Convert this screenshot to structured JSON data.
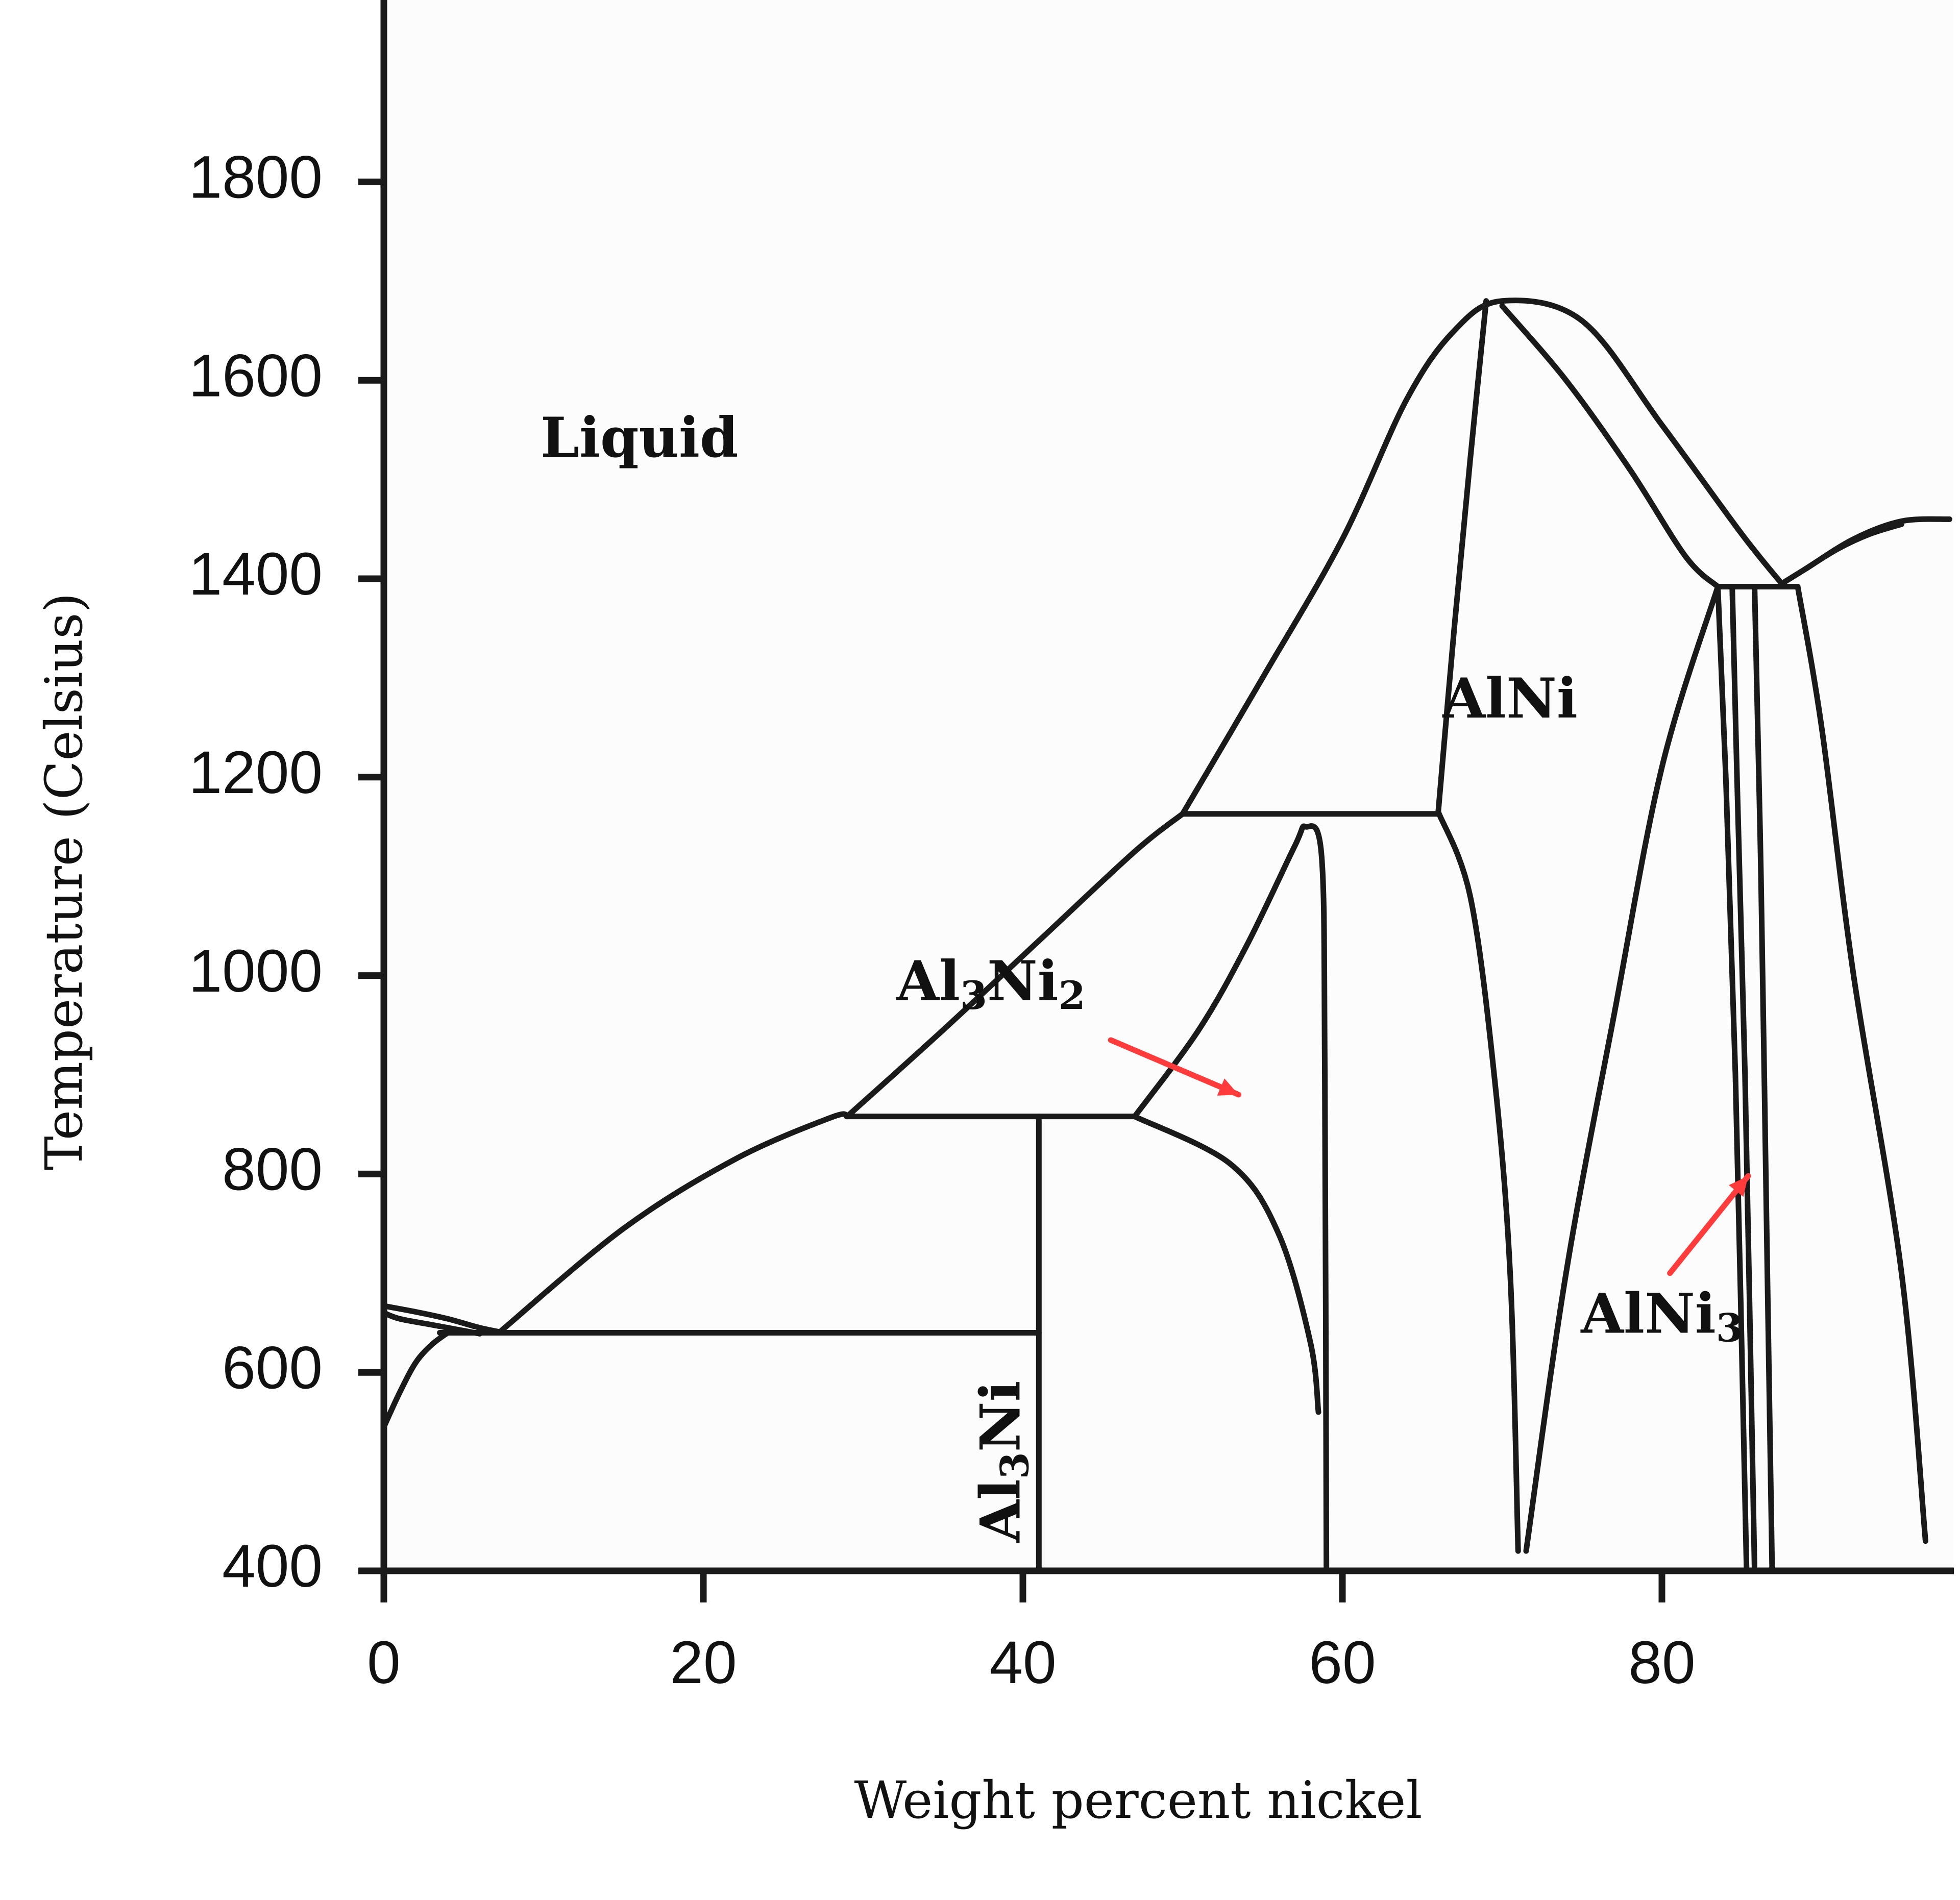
{
  "chart_data": {
    "type": "line",
    "xlabel": "Weight percent nickel",
    "ylabel": "Temperature (Celsius)",
    "xlim": [
      0,
      98
    ],
    "ylim": [
      400,
      1800
    ],
    "xticks": [
      0,
      20,
      40,
      60,
      80
    ],
    "yticks": [
      400,
      600,
      800,
      1000,
      1200,
      1400,
      1600,
      1800
    ],
    "grid": false,
    "legend": "none",
    "colors": {
      "line": "#1a1a1a",
      "arrow": "#ff3b3b",
      "background": "#ffffff"
    },
    "phase_boundaries": [
      {
        "points": [
          [
            0,
            660
          ],
          [
            1,
            654
          ],
          [
            3,
            648
          ],
          [
            5,
            642
          ],
          [
            6,
            639
          ]
        ]
      },
      {
        "points": [
          [
            0,
            667
          ],
          [
            2,
            661
          ],
          [
            4,
            654
          ],
          [
            6,
            645
          ],
          [
            7.5,
            640
          ]
        ]
      },
      {
        "points": [
          [
            0,
            545
          ],
          [
            1,
            580
          ],
          [
            2,
            610
          ],
          [
            3,
            628
          ],
          [
            4,
            640
          ]
        ]
      },
      {
        "points": [
          [
            7.2,
            640
          ],
          [
            15,
            745
          ],
          [
            22,
            815
          ],
          [
            28,
            857
          ],
          [
            29,
            858
          ]
        ]
      },
      {
        "points": [
          [
            29,
            858
          ],
          [
            35,
            945
          ],
          [
            41,
            1035
          ],
          [
            47,
            1125
          ],
          [
            50,
            1163
          ]
        ]
      },
      {
        "points": [
          [
            50,
            1163
          ],
          [
            55,
            1300
          ],
          [
            60,
            1440
          ],
          [
            64,
            1580
          ],
          [
            67,
            1650
          ],
          [
            70,
            1680
          ],
          [
            75,
            1660
          ],
          [
            80,
            1555
          ],
          [
            85,
            1445
          ],
          [
            87.5,
            1395
          ]
        ]
      },
      {
        "points": [
          [
            87.5,
            1395
          ],
          [
            89,
            1410
          ],
          [
            92,
            1440
          ],
          [
            95,
            1458
          ],
          [
            98,
            1460
          ]
        ]
      },
      {
        "points": [
          [
            89,
            1410
          ],
          [
            91,
            1430
          ],
          [
            93,
            1445
          ],
          [
            95,
            1455
          ]
        ]
      },
      {
        "points": [
          [
            69,
            1680
          ],
          [
            68,
            1520
          ],
          [
            67,
            1350
          ],
          [
            66,
            1165
          ]
        ]
      },
      {
        "points": [
          [
            70,
            1675
          ],
          [
            74,
            1600
          ],
          [
            78,
            1510
          ],
          [
            81.5,
            1422
          ],
          [
            83.5,
            1392
          ]
        ]
      },
      {
        "points": [
          [
            66,
            1165
          ],
          [
            68,
            1080
          ],
          [
            69.5,
            900
          ],
          [
            70.5,
            700
          ],
          [
            71,
            420
          ]
        ]
      },
      {
        "points": [
          [
            71.5,
            420
          ],
          [
            74,
            700
          ],
          [
            77,
            960
          ],
          [
            80,
            1210
          ],
          [
            83.5,
            1392
          ]
        ]
      },
      {
        "points": [
          [
            83.5,
            1392
          ],
          [
            84,
            1200
          ],
          [
            84.6,
            900
          ],
          [
            85.3,
            400
          ]
        ]
      },
      {
        "points": [
          [
            84.4,
            1392
          ],
          [
            84.7,
            1200
          ],
          [
            85.2,
            900
          ],
          [
            85.8,
            400
          ]
        ]
      },
      {
        "points": [
          [
            85.8,
            1392
          ],
          [
            86.2,
            1100
          ],
          [
            86.6,
            700
          ],
          [
            86.9,
            400
          ]
        ]
      },
      {
        "points": [
          [
            86.8,
            1392
          ],
          [
            88.5,
            1392
          ]
        ]
      },
      {
        "points": [
          [
            88.5,
            1392
          ],
          [
            90,
            1250
          ],
          [
            92,
            1000
          ],
          [
            95,
            700
          ],
          [
            96.5,
            430
          ]
        ]
      },
      {
        "points": [
          [
            83.5,
            1392
          ],
          [
            86.8,
            1392
          ]
        ]
      },
      {
        "points": [
          [
            50,
            1163
          ],
          [
            66,
            1163
          ]
        ]
      },
      {
        "points": [
          [
            29,
            858
          ],
          [
            47,
            858
          ]
        ]
      },
      {
        "points": [
          [
            3.5,
            640
          ],
          [
            41,
            640
          ]
        ]
      },
      {
        "points": [
          [
            41,
            858
          ],
          [
            41,
            400
          ]
        ]
      },
      {
        "points": [
          [
            47,
            858
          ],
          [
            53,
            810
          ],
          [
            56,
            740
          ],
          [
            58,
            630
          ],
          [
            58.5,
            560
          ]
        ]
      },
      {
        "points": [
          [
            47,
            858
          ],
          [
            51,
            945
          ],
          [
            54,
            1030
          ],
          [
            57,
            1130
          ],
          [
            57.7,
            1150
          ],
          [
            58.7,
            1120
          ],
          [
            58.9,
            900
          ],
          [
            59,
            400
          ]
        ]
      }
    ],
    "annotations": [
      {
        "text": "Liquid",
        "x": 16,
        "y": 1523
      },
      {
        "text": "AlNi",
        "x": 70.5,
        "y": 1260
      },
      {
        "text_main": "Al",
        "sub1": "3",
        "mid": "Ni",
        "sub2": "2",
        "x": 38,
        "y": 975
      },
      {
        "text_main": "Al",
        "sub1": "3",
        "mid": "Ni",
        "x": 39.8,
        "y": 510,
        "rotated": true
      },
      {
        "text_main": "AlNi",
        "sub1": "3",
        "x": 80,
        "y": 640
      }
    ],
    "arrows": [
      {
        "from": [
          45.5,
          935
        ],
        "to": [
          53.5,
          880
        ]
      },
      {
        "from": [
          80.5,
          700
        ],
        "to": [
          85.4,
          798
        ]
      }
    ]
  }
}
